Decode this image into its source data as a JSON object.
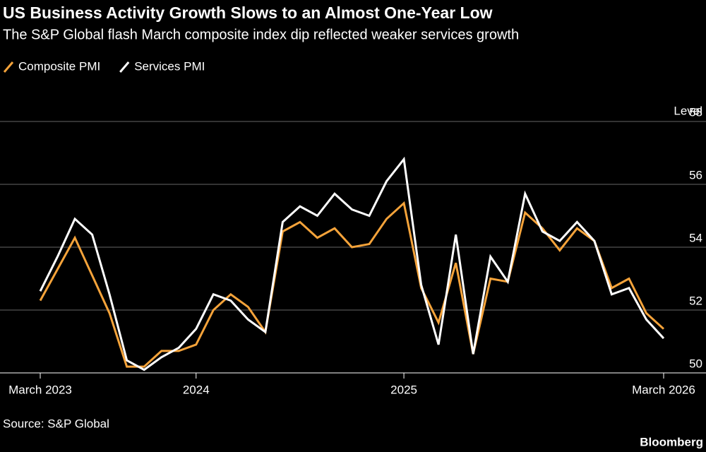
{
  "title": "US Business Activity Growth Slows to an Almost One-Year Low",
  "subtitle": "The S&P Global flash March composite index dip reflected weaker services growth",
  "source": "Source: S&P Global",
  "brand": "Bloomberg",
  "chart_data": {
    "type": "line",
    "y_axis_label": "Level",
    "categories": [
      "March 2023",
      null,
      null,
      null,
      null,
      null,
      null,
      null,
      null,
      "2024",
      null,
      null,
      null,
      null,
      null,
      null,
      null,
      null,
      null,
      null,
      null,
      "2025",
      null,
      null,
      null,
      null,
      null,
      null,
      null,
      null,
      null,
      null,
      null,
      null,
      null,
      null,
      "March 2026"
    ],
    "series": [
      {
        "name": "Composite PMI",
        "color": "#f5a33a",
        "values": [
          52.3,
          53.3,
          54.3,
          53.1,
          51.9,
          50.2,
          50.2,
          50.7,
          50.7,
          50.9,
          52.0,
          52.5,
          52.1,
          51.3,
          54.5,
          54.8,
          54.3,
          54.6,
          54.0,
          54.1,
          54.9,
          55.4,
          52.7,
          51.6,
          53.5,
          50.6,
          53.0,
          52.9,
          55.1,
          54.6,
          53.9,
          54.6,
          54.2,
          52.7,
          53.0,
          51.9,
          51.4
        ]
      },
      {
        "name": "Services PMI",
        "color": "#ffffff",
        "values": [
          52.6,
          53.7,
          54.9,
          54.4,
          52.5,
          50.4,
          50.1,
          50.5,
          50.8,
          51.4,
          52.5,
          52.3,
          51.7,
          51.3,
          54.8,
          55.3,
          55.0,
          55.7,
          55.2,
          55.0,
          56.1,
          56.8,
          52.8,
          50.9,
          54.4,
          50.6,
          53.7,
          52.9,
          55.7,
          54.5,
          54.2,
          54.8,
          54.2,
          52.5,
          52.7,
          51.7,
          51.1
        ]
      }
    ],
    "ylim": [
      50,
      58
    ],
    "yticks": [
      50,
      52,
      54,
      56,
      58
    ],
    "grid": true
  }
}
